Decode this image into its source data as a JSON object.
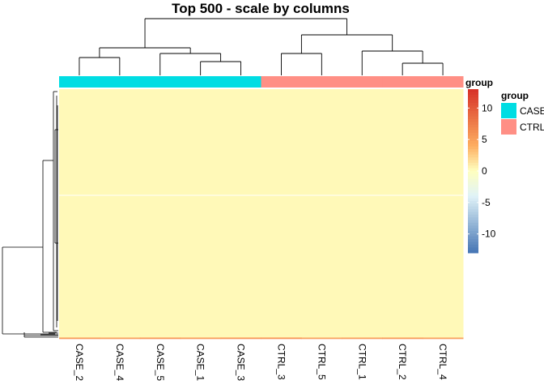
{
  "chart_data": {
    "type": "heatmap",
    "title": "Top 500 - scale by columns",
    "columns": [
      "CASE_2",
      "CASE_4",
      "CASE_5",
      "CASE_1",
      "CASE_3",
      "CTRL_3",
      "CTRL_5",
      "CTRL_1",
      "CTRL_2",
      "CTRL_4"
    ],
    "column_groups": [
      "CASE",
      "CASE",
      "CASE",
      "CASE",
      "CASE",
      "CTRL",
      "CTRL",
      "CTRL",
      "CTRL",
      "CTRL"
    ],
    "annotation": {
      "label": "group",
      "legend_title": "group",
      "levels": [
        {
          "name": "CASE",
          "color": "#00DDE3"
        },
        {
          "name": "CTRL",
          "color": "#FF8F85"
        }
      ]
    },
    "color_scale": {
      "colors": [
        "#4575B4",
        "#E0F3F8",
        "#FFFFBF",
        "#FDAE61",
        "#D73027"
      ],
      "breaks": [
        -13,
        -4,
        0,
        4,
        13
      ],
      "ticks": [
        "10",
        "5",
        "0",
        "-5",
        "-10"
      ],
      "tick_values": [
        10,
        5,
        0,
        -5,
        -10
      ]
    },
    "row_count": 500,
    "value_summary": {
      "bulk_rows_value": 0.3,
      "high_rows_at_bottom": [
        [
          2.6,
          2.4,
          2.7,
          2.5,
          2.8,
          2.9,
          2.3,
          2.5,
          2.6,
          2.4
        ],
        [
          4.0,
          3.7,
          4.1,
          3.9,
          4.3,
          4.4,
          3.6,
          3.8,
          4.0,
          3.7
        ],
        [
          6.2,
          6.0,
          6.4,
          6.1,
          6.5,
          6.6,
          5.8,
          6.0,
          6.3,
          5.9
        ]
      ]
    },
    "column_dendrogram": true,
    "row_dendrogram": true
  }
}
